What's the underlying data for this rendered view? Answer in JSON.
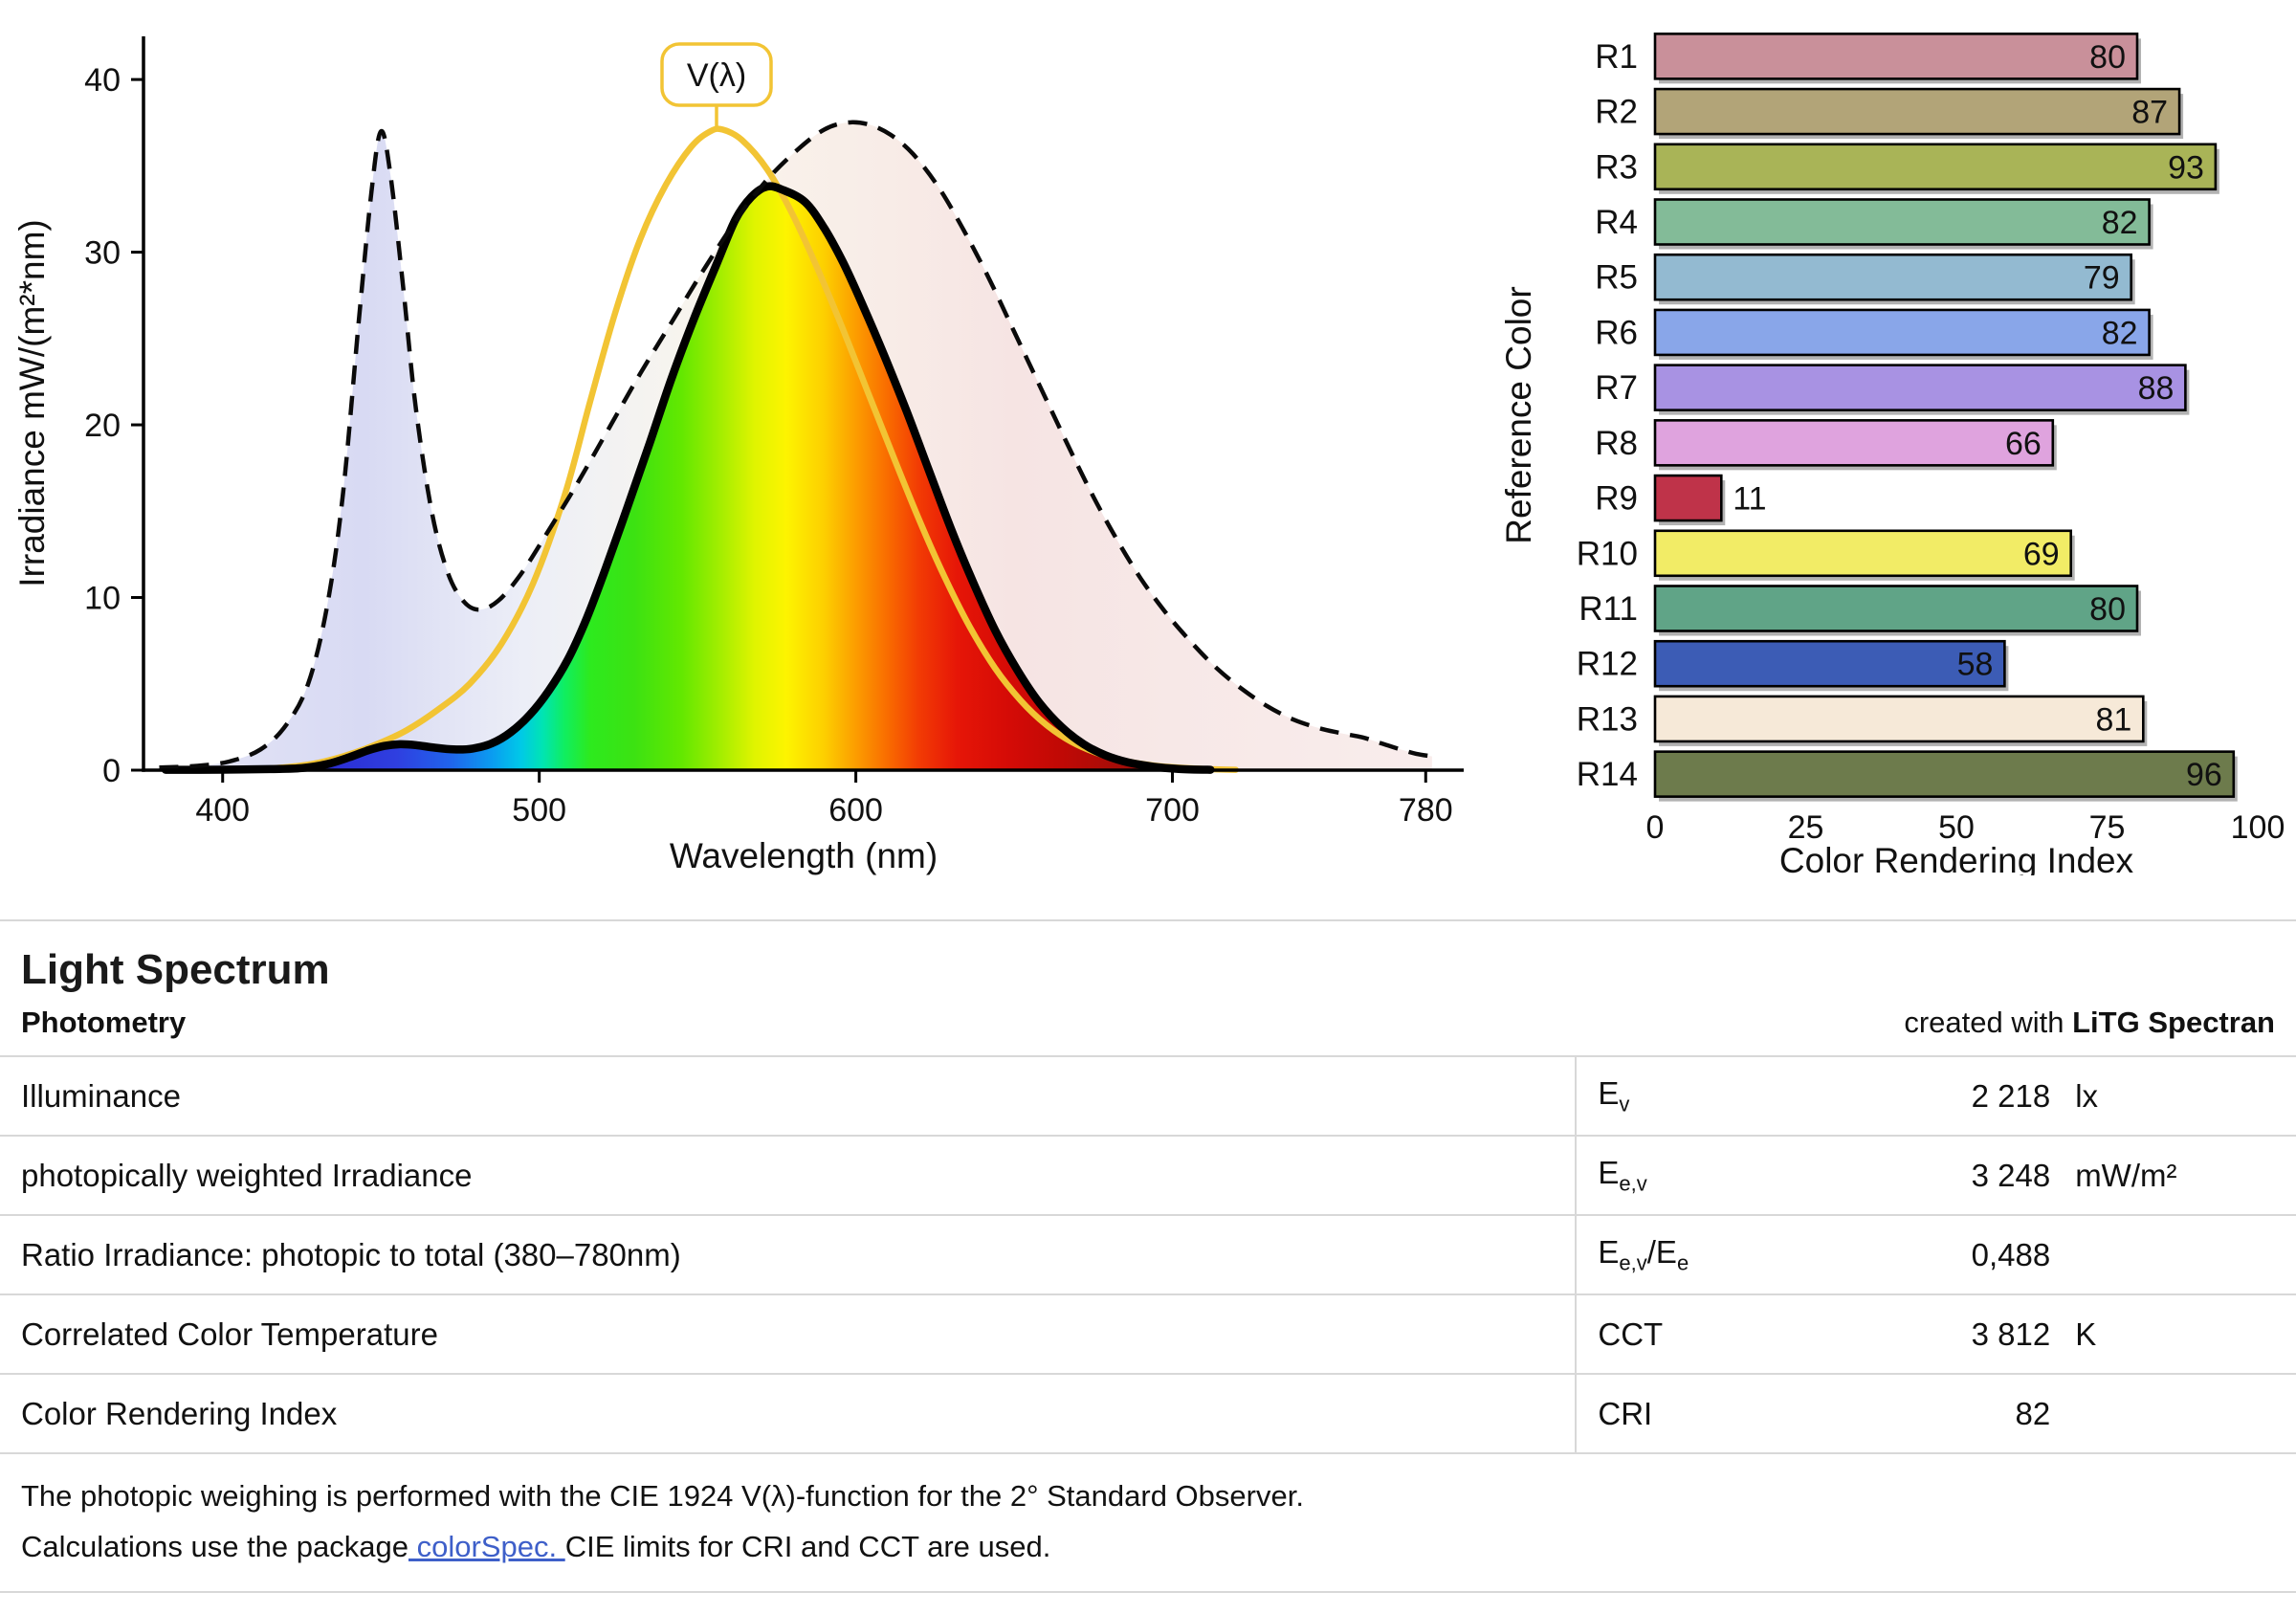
{
  "page": {
    "background": "#ffffff"
  },
  "chart_data": [
    {
      "type": "line",
      "title": "",
      "xlabel": "Wavelength (nm)",
      "ylabel": "Irradiance  mW/(m²*nm)",
      "xlim": [
        375,
        792
      ],
      "ylim": [
        0,
        42.5
      ],
      "xticks": [
        400,
        500,
        600,
        700,
        780
      ],
      "yticks": [
        0,
        10,
        20,
        30,
        40
      ],
      "grid": false,
      "annotation": {
        "label": "V(λ)",
        "x": 556,
        "color": "#f2c434"
      },
      "series": [
        {
          "name": "total-spectrum",
          "style": "dashed-black",
          "fill": "pale",
          "points": [
            [
              380,
              0.15
            ],
            [
              392,
              0.25
            ],
            [
              402,
              0.5
            ],
            [
              412,
              1.2
            ],
            [
              420,
              2.6
            ],
            [
              427,
              5
            ],
            [
              433,
              9.5
            ],
            [
              438,
              16
            ],
            [
              443,
              26
            ],
            [
              447,
              33.5
            ],
            [
              450,
              37
            ],
            [
              453,
              34.5
            ],
            [
              457,
              28
            ],
            [
              461,
              21
            ],
            [
              466,
              15
            ],
            [
              471,
              11.5
            ],
            [
              476,
              9.8
            ],
            [
              481,
              9.3
            ],
            [
              487,
              9.8
            ],
            [
              494,
              11.3
            ],
            [
              502,
              13.6
            ],
            [
              512,
              16.6
            ],
            [
              522,
              19.8
            ],
            [
              532,
              23
            ],
            [
              542,
              26
            ],
            [
              552,
              29
            ],
            [
              562,
              31.8
            ],
            [
              572,
              34.2
            ],
            [
              582,
              36
            ],
            [
              590,
              37.1
            ],
            [
              597,
              37.5
            ],
            [
              604,
              37.4
            ],
            [
              611,
              36.8
            ],
            [
              618,
              35.7
            ],
            [
              626,
              33.8
            ],
            [
              634,
              31.3
            ],
            [
              642,
              28.5
            ],
            [
              650,
              25.4
            ],
            [
              658,
              22.3
            ],
            [
              666,
              19.2
            ],
            [
              674,
              16.2
            ],
            [
              682,
              13.5
            ],
            [
              690,
              11.1
            ],
            [
              698,
              9.1
            ],
            [
              706,
              7.4
            ],
            [
              714,
              5.9
            ],
            [
              722,
              4.7
            ],
            [
              730,
              3.7
            ],
            [
              738,
              2.95
            ],
            [
              746,
              2.45
            ],
            [
              753,
              2.15
            ],
            [
              760,
              1.9
            ],
            [
              766,
              1.55
            ],
            [
              772,
              1.2
            ],
            [
              777,
              0.95
            ],
            [
              782,
              0.8
            ]
          ]
        },
        {
          "name": "photopic-weighted-spectrum",
          "style": "thick-black",
          "fill": "rainbow",
          "points": [
            [
              382,
              0.02
            ],
            [
              400,
              0.03
            ],
            [
              415,
              0.06
            ],
            [
              425,
              0.12
            ],
            [
              433,
              0.35
            ],
            [
              440,
              0.75
            ],
            [
              446,
              1.15
            ],
            [
              451,
              1.4
            ],
            [
              456,
              1.5
            ],
            [
              461,
              1.45
            ],
            [
              467,
              1.3
            ],
            [
              473,
              1.2
            ],
            [
              479,
              1.25
            ],
            [
              485,
              1.55
            ],
            [
              491,
              2.2
            ],
            [
              497,
              3.2
            ],
            [
              503,
              4.6
            ],
            [
              509,
              6.4
            ],
            [
              515,
              8.8
            ],
            [
              521,
              11.7
            ],
            [
              528,
              15.3
            ],
            [
              535,
              19
            ],
            [
              542,
              22.8
            ],
            [
              549,
              26.2
            ],
            [
              556,
              29.3
            ],
            [
              562,
              31.9
            ],
            [
              567,
              33.2
            ],
            [
              572,
              33.8
            ],
            [
              577,
              33.6
            ],
            [
              584,
              32.9
            ],
            [
              590,
              31.4
            ],
            [
              596,
              29.4
            ],
            [
              602,
              27
            ],
            [
              609,
              24
            ],
            [
              616,
              20.8
            ],
            [
              623,
              17.4
            ],
            [
              630,
              14
            ],
            [
              637,
              10.9
            ],
            [
              644,
              8.1
            ],
            [
              651,
              5.8
            ],
            [
              658,
              3.9
            ],
            [
              665,
              2.5
            ],
            [
              672,
              1.5
            ],
            [
              679,
              0.85
            ],
            [
              686,
              0.45
            ],
            [
              694,
              0.2
            ],
            [
              702,
              0.07
            ],
            [
              712,
              0.02
            ]
          ]
        },
        {
          "name": "v-lambda",
          "style": "gold-line",
          "color": "#f2c434",
          "points": [
            [
              402,
              0.02
            ],
            [
              415,
              0.1
            ],
            [
              428,
              0.35
            ],
            [
              438,
              0.8
            ],
            [
              448,
              1.45
            ],
            [
              458,
              2.3
            ],
            [
              468,
              3.5
            ],
            [
              478,
              5
            ],
            [
              488,
              7.3
            ],
            [
              498,
              10.8
            ],
            [
              508,
              15.9
            ],
            [
              516,
              21.3
            ],
            [
              524,
              26.5
            ],
            [
              532,
              30.8
            ],
            [
              540,
              33.9
            ],
            [
              548,
              36.1
            ],
            [
              554,
              37.0
            ],
            [
              558,
              37.1
            ],
            [
              564,
              36.5
            ],
            [
              572,
              34.8
            ],
            [
              580,
              32.2
            ],
            [
              588,
              29
            ],
            [
              596,
              25.5
            ],
            [
              604,
              21.8
            ],
            [
              612,
              18.1
            ],
            [
              620,
              14.5
            ],
            [
              628,
              11.2
            ],
            [
              636,
              8.3
            ],
            [
              644,
              5.9
            ],
            [
              652,
              4.05
            ],
            [
              660,
              2.65
            ],
            [
              668,
              1.65
            ],
            [
              676,
              1.0
            ],
            [
              684,
              0.58
            ],
            [
              692,
              0.32
            ],
            [
              700,
              0.17
            ],
            [
              710,
              0.07
            ],
            [
              720,
              0.02
            ]
          ]
        }
      ],
      "fill_gradients": {
        "pale": [
          [
            385,
            "#e3e4f6"
          ],
          [
            445,
            "#d8daf3"
          ],
          [
            470,
            "#e2e4f5"
          ],
          [
            495,
            "#eceef7"
          ],
          [
            520,
            "#f2f2f3"
          ],
          [
            545,
            "#f7f4ee"
          ],
          [
            575,
            "#f9f1ea"
          ],
          [
            610,
            "#f8ece7"
          ],
          [
            650,
            "#f6e4e3"
          ],
          [
            700,
            "#f7e8e7"
          ],
          [
            780,
            "#f9edec"
          ]
        ],
        "rainbow": [
          [
            430,
            "#2a2ad0"
          ],
          [
            455,
            "#2f3fe0"
          ],
          [
            472,
            "#2064ec"
          ],
          [
            485,
            "#0a9cf0"
          ],
          [
            494,
            "#00c8e8"
          ],
          [
            501,
            "#00e4b4"
          ],
          [
            508,
            "#10ee60"
          ],
          [
            516,
            "#2dea1e"
          ],
          [
            530,
            "#3ce212"
          ],
          [
            545,
            "#63e800"
          ],
          [
            558,
            "#a8ee00"
          ],
          [
            568,
            "#e0f400"
          ],
          [
            578,
            "#fdf400"
          ],
          [
            590,
            "#fdcf00"
          ],
          [
            600,
            "#fc9d00"
          ],
          [
            610,
            "#f96c00"
          ],
          [
            620,
            "#f23b04"
          ],
          [
            632,
            "#e61607"
          ],
          [
            648,
            "#d50b06"
          ],
          [
            665,
            "#c00905"
          ],
          [
            685,
            "#a30d08"
          ]
        ]
      }
    },
    {
      "type": "bar",
      "orientation": "horizontal",
      "xlabel": "Color Rendering Index",
      "ylabel": "Reference Color",
      "xlim": [
        0,
        100
      ],
      "xticks": [
        0,
        25,
        50,
        75,
        100
      ],
      "categories": [
        "R1",
        "R2",
        "R3",
        "R4",
        "R5",
        "R6",
        "R7",
        "R8",
        "R9",
        "R10",
        "R11",
        "R12",
        "R13",
        "R14"
      ],
      "values": [
        80,
        87,
        93,
        82,
        79,
        82,
        88,
        66,
        11,
        69,
        80,
        58,
        81,
        96
      ],
      "colors": [
        "#c9909a",
        "#b2a478",
        "#a9b457",
        "#83bb98",
        "#93bad1",
        "#89a6e9",
        "#a892e3",
        "#dfa3de",
        "#bf3349",
        "#f2ec66",
        "#60a487",
        "#3c5cb5",
        "#f6e9d8",
        "#6d7b4c"
      ]
    }
  ],
  "report": {
    "title": "Light Spectrum",
    "section": "Photometry",
    "created_with_prefix": "created with ",
    "created_with_brand": "LiTG Spectran",
    "rows": [
      {
        "label": "Illuminance",
        "symbol": [
          {
            "t": "E"
          },
          {
            "s": "v"
          }
        ],
        "value": "2 218",
        "unit": "lx"
      },
      {
        "label": "photopically weighted Irradiance",
        "symbol": [
          {
            "t": "E"
          },
          {
            "s": "e,v"
          }
        ],
        "value": "3 248",
        "unit": "mW/m²"
      },
      {
        "label": "Ratio Irradiance: photopic to total (380–780nm)",
        "symbol": [
          {
            "t": "E"
          },
          {
            "s": "e,v"
          },
          {
            "t": "/E"
          },
          {
            "s": "e"
          }
        ],
        "value": "0,488",
        "unit": ""
      },
      {
        "label": "Correlated Color Temperature",
        "symbol": [
          {
            "t": "CCT"
          }
        ],
        "value": "3 812",
        "unit": "K"
      },
      {
        "label": "Color Rendering Index",
        "symbol": [
          {
            "t": "CRI"
          }
        ],
        "value": "82",
        "unit": ""
      }
    ],
    "note1": "The photopic weighing is performed with the CIE 1924 V(λ)-function for the 2° Standard Observer.",
    "note2_parts": [
      {
        "text": "Calculations use the package"
      },
      {
        "text": " colorSpec. ",
        "link": true
      },
      {
        "text": "CIE limits for CRI and CCT are used."
      }
    ]
  },
  "colors": {
    "text": "#111111",
    "divider": "#d8d8d8",
    "gold": "#f2c434",
    "link": "#3e5fc9"
  }
}
